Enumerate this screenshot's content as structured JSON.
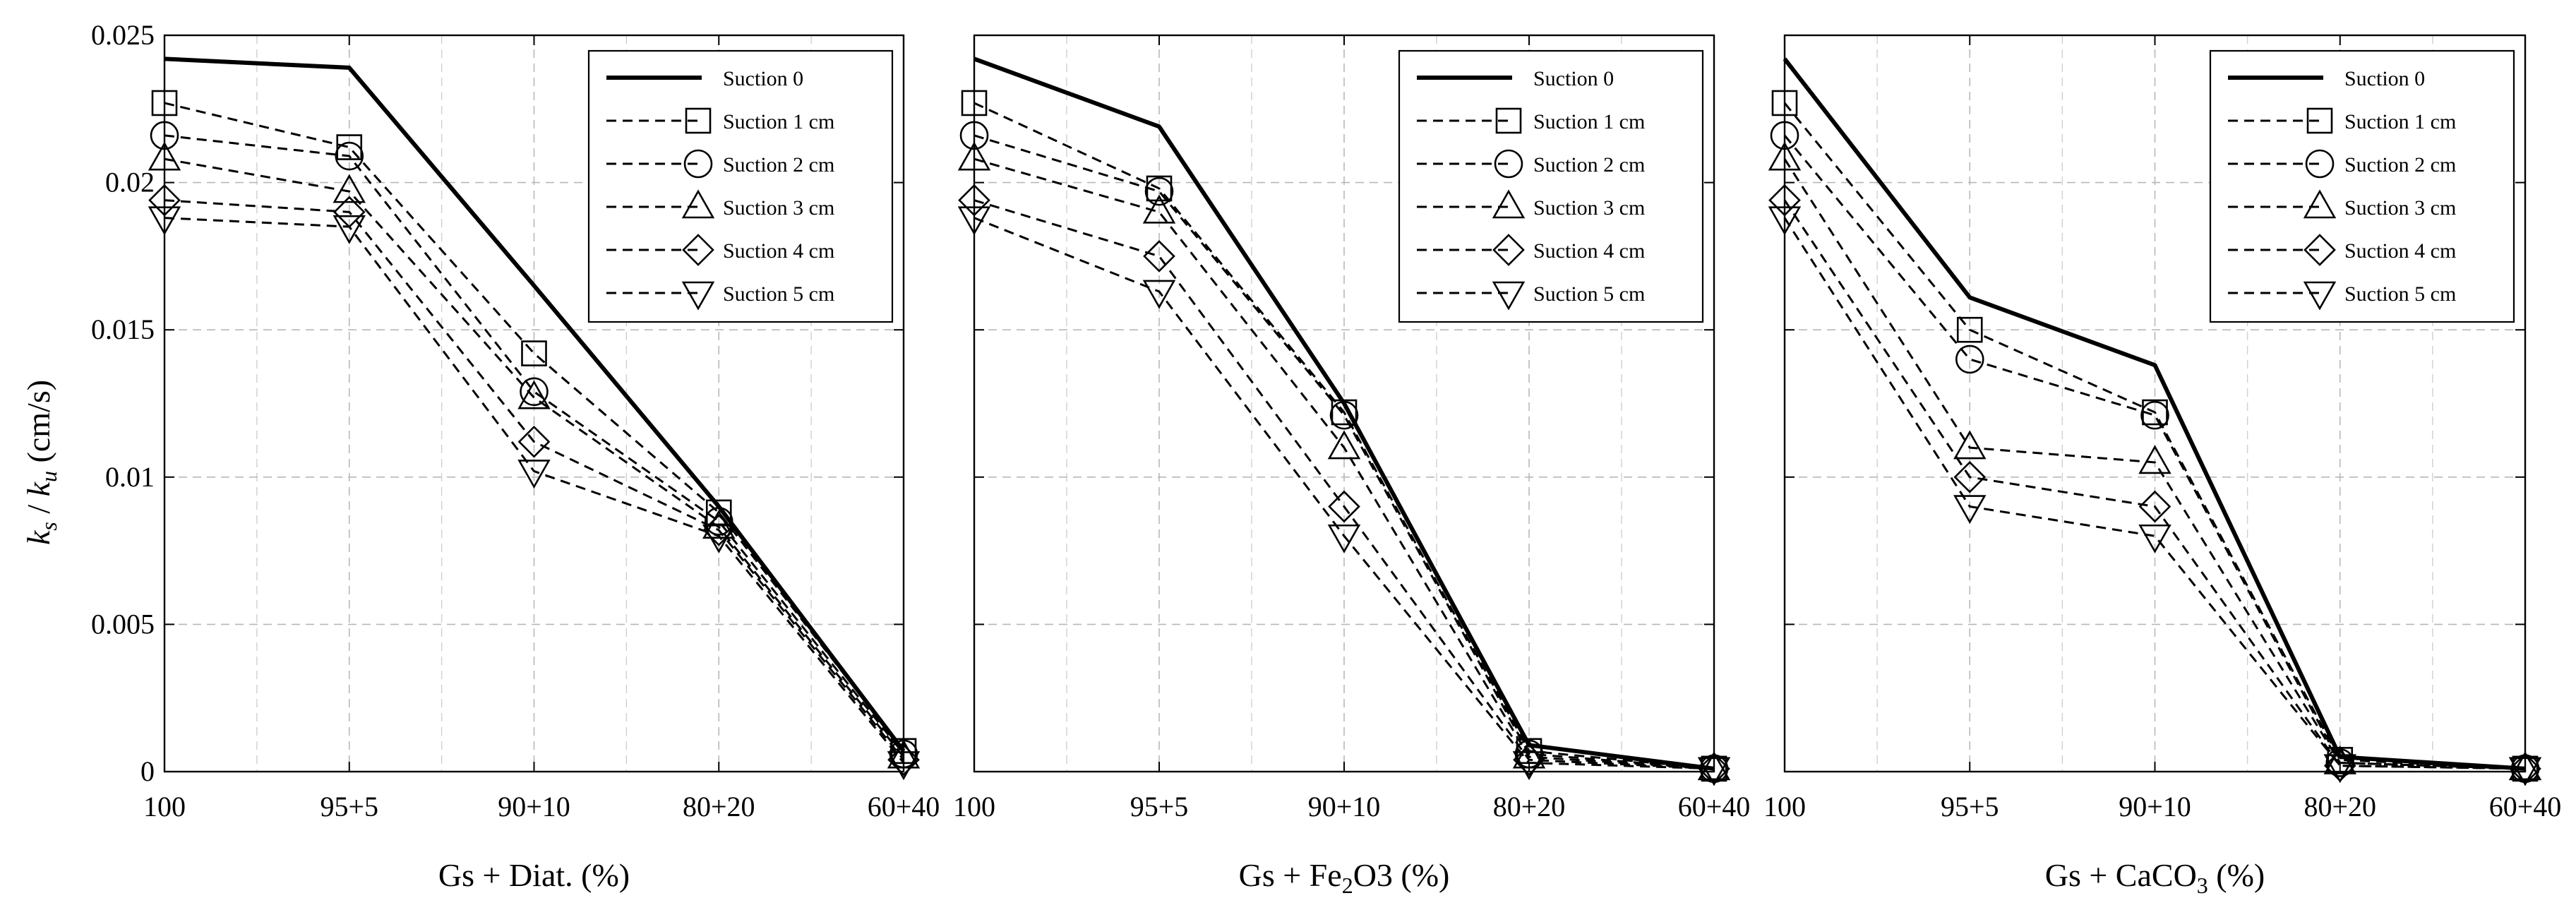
{
  "figure": {
    "ylabel": {
      "k1": "k",
      "s1": "s",
      "sep": " / ",
      "k2": "k",
      "s2": "u",
      "unit": " (cm/s)"
    }
  },
  "chart_data": [
    {
      "type": "line",
      "xlabel": {
        "pre": "Gs + Diat. (%)",
        "sub": "",
        "post": ""
      },
      "categories": [
        "100",
        "95+5",
        "90+10",
        "80+20",
        "60+40"
      ],
      "ylim": [
        0,
        0.025
      ],
      "yticks": [
        "0",
        "0.005",
        "0.01",
        "0.015",
        "0.02",
        "0.025"
      ],
      "ytick_values": [
        0,
        0.005,
        0.01,
        0.015,
        0.02,
        0.025
      ],
      "grid": true,
      "legend": "top-right",
      "series": [
        {
          "name": "Suction 0",
          "marker": "none",
          "values": [
            0.0242,
            0.0239,
            0.0165,
            0.009,
            0.0007
          ]
        },
        {
          "name": "Suction 1 cm",
          "marker": "square",
          "values": [
            0.0227,
            0.0212,
            0.0142,
            0.0088,
            0.0007
          ]
        },
        {
          "name": "Suction 2 cm",
          "marker": "circle",
          "values": [
            0.0216,
            0.0209,
            0.0129,
            0.0085,
            0.0006
          ]
        },
        {
          "name": "Suction 3 cm",
          "marker": "triangle-up",
          "values": [
            0.0208,
            0.0197,
            0.0127,
            0.0083,
            0.0005
          ]
        },
        {
          "name": "Suction 4 cm",
          "marker": "diamond",
          "values": [
            0.0194,
            0.019,
            0.0112,
            0.0082,
            0.0004
          ]
        },
        {
          "name": "Suction 5 cm",
          "marker": "triangle-down",
          "values": [
            0.0188,
            0.0185,
            0.0102,
            0.008,
            0.0003
          ]
        }
      ]
    },
    {
      "type": "line",
      "xlabel": {
        "pre": "Gs + Fe",
        "sub": "2",
        "post": "O3 (%)"
      },
      "categories": [
        "100",
        "95+5",
        "90+10",
        "80+20",
        "60+40"
      ],
      "ylim": [
        0,
        0.025
      ],
      "yticks": [
        "0",
        "0.005",
        "0.01",
        "0.015",
        "0.02",
        "0.025"
      ],
      "ytick_values": [
        0,
        0.005,
        0.01,
        0.015,
        0.02,
        0.025
      ],
      "grid": true,
      "legend": "top-right",
      "series": [
        {
          "name": "Suction 0",
          "marker": "none",
          "values": [
            0.0242,
            0.0219,
            0.0125,
            0.0009,
            0.0001
          ]
        },
        {
          "name": "Suction 1 cm",
          "marker": "square",
          "values": [
            0.0227,
            0.0198,
            0.0122,
            0.0007,
            0.0001
          ]
        },
        {
          "name": "Suction 2 cm",
          "marker": "circle",
          "values": [
            0.0216,
            0.0197,
            0.0121,
            0.0006,
            0.0001
          ]
        },
        {
          "name": "Suction 3 cm",
          "marker": "triangle-up",
          "values": [
            0.0208,
            0.019,
            0.011,
            0.0005,
            0.0001
          ]
        },
        {
          "name": "Suction 4 cm",
          "marker": "diamond",
          "values": [
            0.0194,
            0.0175,
            0.009,
            0.0004,
            0.0001
          ]
        },
        {
          "name": "Suction 5 cm",
          "marker": "triangle-down",
          "values": [
            0.0188,
            0.0163,
            0.008,
            0.0003,
            0.0001
          ]
        }
      ]
    },
    {
      "type": "line",
      "xlabel": {
        "pre": "Gs + CaCO",
        "sub": "3",
        "post": " (%)"
      },
      "categories": [
        "100",
        "95+5",
        "90+10",
        "80+20",
        "60+40"
      ],
      "ylim": [
        0,
        0.025
      ],
      "yticks": [
        "0",
        "0.005",
        "0.01",
        "0.015",
        "0.02",
        "0.025"
      ],
      "ytick_values": [
        0,
        0.005,
        0.01,
        0.015,
        0.02,
        0.025
      ],
      "grid": true,
      "legend": "top-right",
      "series": [
        {
          "name": "Suction 0",
          "marker": "none",
          "values": [
            0.0242,
            0.0161,
            0.0138,
            0.0005,
            0.0001
          ]
        },
        {
          "name": "Suction 1 cm",
          "marker": "square",
          "values": [
            0.0227,
            0.015,
            0.0122,
            0.0004,
            0.0001
          ]
        },
        {
          "name": "Suction 2 cm",
          "marker": "circle",
          "values": [
            0.0216,
            0.014,
            0.0121,
            0.0003,
            0.0001
          ]
        },
        {
          "name": "Suction 3 cm",
          "marker": "triangle-up",
          "values": [
            0.0208,
            0.011,
            0.0105,
            0.0003,
            0.0001
          ]
        },
        {
          "name": "Suction 4 cm",
          "marker": "diamond",
          "values": [
            0.0194,
            0.01,
            0.009,
            0.0002,
            0.0001
          ]
        },
        {
          "name": "Suction 5 cm",
          "marker": "triangle-down",
          "values": [
            0.0188,
            0.009,
            0.008,
            0.0002,
            0.0001
          ]
        }
      ]
    }
  ]
}
